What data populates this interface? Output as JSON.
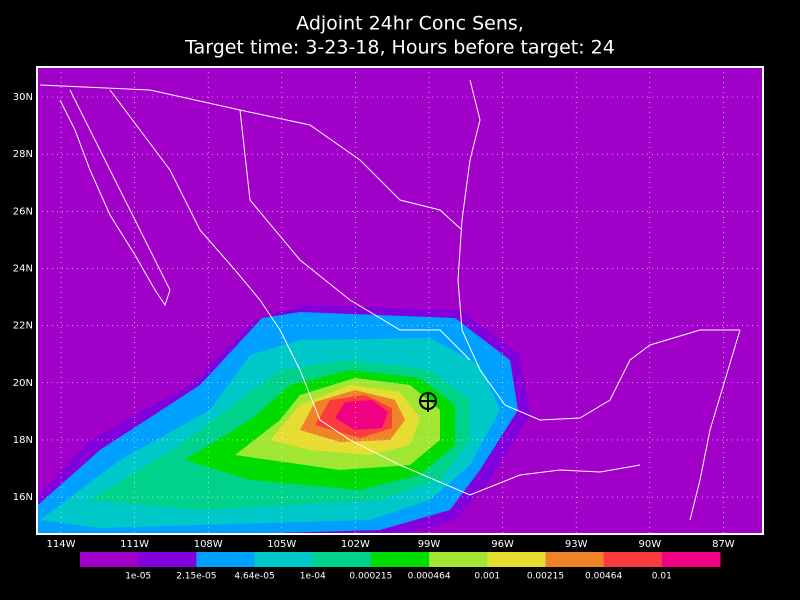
{
  "title": [
    "Adjoint 24hr Conc Sens,",
    "Target time: 3-23-18, Hours before target: 24"
  ],
  "lat_labels": [
    "30N",
    "28N",
    "26N",
    "24N",
    "22N",
    "20N",
    "18N",
    "16N"
  ],
  "lon_labels": [
    "114W",
    "111W",
    "108W",
    "105W",
    "102W",
    "99W",
    "96W",
    "93W",
    "90W",
    "87W"
  ],
  "background_color": "#a000c8",
  "colorbar": {
    "colors": [
      "#a000c8",
      "#8200dc",
      "#00a0ff",
      "#00c8c8",
      "#00d28c",
      "#00dc00",
      "#a0e632",
      "#e6dc32",
      "#f08228",
      "#fa3c3c",
      "#f00082"
    ],
    "labels": [
      "1e-05",
      "2.15e-05",
      "4.64e-05",
      "1e-04",
      "0.000215",
      "0.000464",
      "0.001",
      "0.00215",
      "0.00464",
      "0.01"
    ]
  }
}
